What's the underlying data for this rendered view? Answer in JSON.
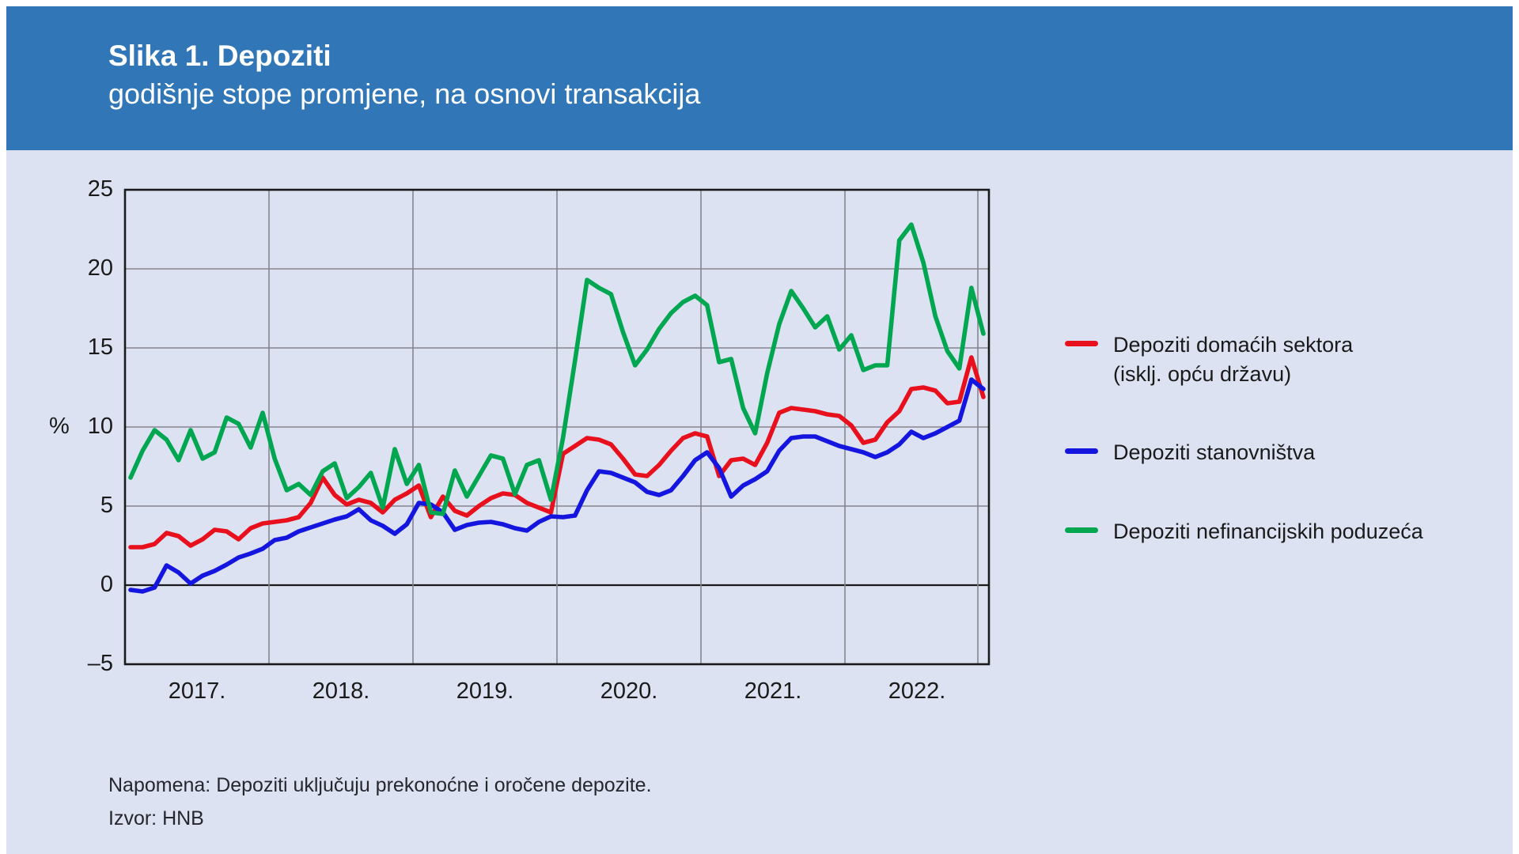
{
  "header": {
    "title": "Slika 1. Depoziti",
    "subtitle": "godišnje stope promjene, na osnovi transakcija"
  },
  "chart_data": {
    "type": "line",
    "title": "Slika 1. Depoziti",
    "subtitle": "godišnje stope promjene, na osnovi transakcija",
    "ylabel": "%",
    "ylim": [
      -5,
      25
    ],
    "yticks": [
      25,
      20,
      15,
      10,
      5,
      0,
      -5
    ],
    "grid": true,
    "legend_position": "right",
    "frequency": "monthly",
    "x_start": "2017-01",
    "x_end": "2022-12",
    "x_years": [
      "2017.",
      "2018.",
      "2019.",
      "2020.",
      "2021.",
      "2022."
    ],
    "series": [
      {
        "name": "Depoziti domaćih sektora (isklj. opću državu)",
        "color": "#e8101c",
        "values": [
          2.4,
          2.4,
          2.6,
          3.3,
          3.1,
          2.5,
          2.9,
          3.5,
          3.4,
          2.9,
          3.6,
          3.9,
          4.0,
          4.1,
          4.3,
          5.2,
          6.8,
          5.7,
          5.1,
          5.4,
          5.2,
          4.6,
          5.4,
          5.8,
          6.3,
          4.3,
          5.6,
          4.7,
          4.4,
          5.0,
          5.5,
          5.8,
          5.7,
          5.2,
          4.9,
          4.6,
          8.3,
          8.8,
          9.3,
          9.2,
          8.9,
          8.0,
          7.0,
          6.9,
          7.6,
          8.5,
          9.3,
          9.6,
          9.4,
          6.9,
          7.9,
          8.0,
          7.6,
          9.0,
          10.9,
          11.2,
          11.1,
          11.0,
          10.8,
          10.7,
          10.1,
          9.0,
          9.2,
          10.3,
          11.0,
          12.4,
          12.5,
          12.3,
          11.5,
          11.6,
          14.4,
          11.9
        ]
      },
      {
        "name": "Depoziti stanovništva",
        "color": "#1515e0",
        "values": [
          -0.3,
          -0.4,
          -0.15,
          1.25,
          0.8,
          0.1,
          0.6,
          0.9,
          1.3,
          1.75,
          2.0,
          2.3,
          2.85,
          3.0,
          3.4,
          3.65,
          3.9,
          4.15,
          4.35,
          4.8,
          4.1,
          3.75,
          3.25,
          3.85,
          5.2,
          5.1,
          4.6,
          3.5,
          3.8,
          3.95,
          4.0,
          3.85,
          3.6,
          3.45,
          4.0,
          4.35,
          4.3,
          4.4,
          6.0,
          7.2,
          7.1,
          6.8,
          6.5,
          5.9,
          5.7,
          6.0,
          6.9,
          7.9,
          8.4,
          7.4,
          5.6,
          6.3,
          6.7,
          7.2,
          8.5,
          9.3,
          9.4,
          9.4,
          9.1,
          8.8,
          8.6,
          8.4,
          8.1,
          8.4,
          8.9,
          9.7,
          9.3,
          9.6,
          10.0,
          10.4,
          13.0,
          12.4
        ]
      },
      {
        "name": "Depoziti nefinancijskih poduzeća",
        "color": "#00a650",
        "values": [
          6.8,
          8.5,
          9.8,
          9.2,
          7.9,
          9.8,
          8.0,
          8.4,
          10.6,
          10.2,
          8.7,
          10.9,
          8.0,
          6.0,
          6.4,
          5.7,
          7.2,
          7.7,
          5.5,
          6.2,
          7.1,
          4.9,
          8.6,
          6.4,
          7.6,
          4.6,
          4.5,
          7.25,
          5.6,
          6.9,
          8.2,
          8.0,
          5.75,
          7.6,
          7.9,
          5.4,
          9.3,
          14.2,
          19.3,
          18.8,
          18.4,
          16.0,
          13.9,
          14.9,
          16.2,
          17.2,
          17.9,
          18.3,
          17.7,
          14.1,
          14.3,
          11.2,
          9.6,
          13.4,
          16.5,
          18.6,
          17.5,
          16.3,
          17.0,
          14.9,
          15.8,
          13.6,
          13.9,
          13.9,
          21.8,
          22.8,
          20.4,
          17.0,
          14.8,
          13.7,
          18.8,
          15.9
        ]
      }
    ]
  },
  "legend": {
    "items": [
      {
        "line1": "Depoziti domaćih sektora",
        "line2": "(isklj. opću državu)",
        "color": "#e8101c"
      },
      {
        "line1": "Depoziti stanovništva",
        "line2": "",
        "color": "#1515e0"
      },
      {
        "line1": "Depoziti nefinancijskih poduzeća",
        "line2": "",
        "color": "#00a650"
      }
    ]
  },
  "footer": {
    "note": "Napomena: Depoziti uključuju prekonoćne i oročene depozite.",
    "source": "Izvor: HNB"
  },
  "colors": {
    "header_bg": "#3177b8",
    "page_bg": "#dce2f1",
    "grid": "#85858f",
    "axis": "#1a1a1a",
    "text": "#1a1a1a"
  }
}
